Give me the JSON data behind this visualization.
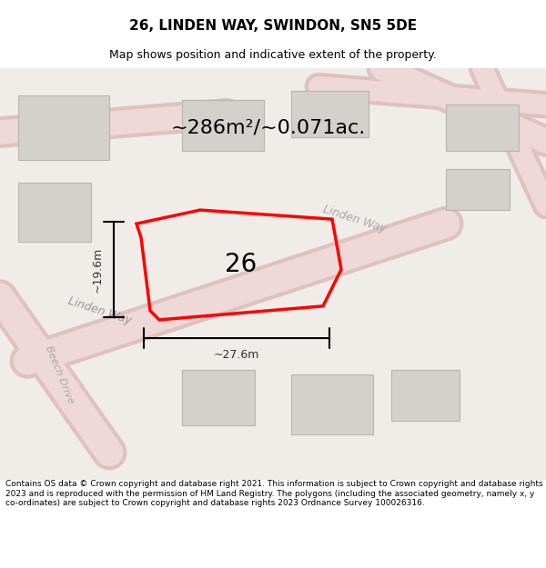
{
  "title": "26, LINDEN WAY, SWINDON, SN5 5DE",
  "subtitle": "Map shows position and indicative extent of the property.",
  "area_text": "~286m²/~0.071ac.",
  "property_number": "26",
  "dim_width": "~27.6m",
  "dim_height": "~19.6m",
  "footer": "Contains OS data © Crown copyright and database right 2021. This information is subject to Crown copyright and database rights 2023 and is reproduced with the permission of HM Land Registry. The polygons (including the associated geometry, namely x, y co-ordinates) are subject to Crown copyright and database rights 2023 Ordnance Survey 100026316.",
  "bg_color": "#f5f0ee",
  "map_bg": "#f0ece8",
  "road_color": "#e8c8c8",
  "road_outline": "#d4a0a0",
  "building_color": "#d8d4d0",
  "building_outline": "#c0bbb6",
  "plot_color": "#ff0000",
  "plot_fill": "none",
  "dim_color": "#333333",
  "title_color": "#000000",
  "footer_color": "#000000"
}
